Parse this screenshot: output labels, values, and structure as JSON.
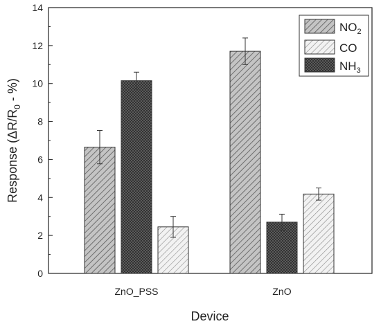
{
  "chart_data": {
    "type": "bar",
    "xlabel": "Device",
    "ylabel": "Response (ΔR/R",
    "ylabel_sub": "0",
    "ylabel_tail": " - %)",
    "ylim": [
      0,
      14
    ],
    "yticks": [
      "0",
      "2",
      "4",
      "6",
      "8",
      "10",
      "12",
      "14"
    ],
    "grid": false,
    "legend_position": "top-right",
    "categories": [
      "ZnO_PSS",
      "ZnO"
    ],
    "series": [
      {
        "name": "NO",
        "name_sub": "2",
        "pattern": "diagonal-hatch",
        "color": "#b5b5b5",
        "values": [
          6.65,
          11.7
        ],
        "errors": [
          0.88,
          0.7
        ]
      },
      {
        "name": "CO",
        "name_sub": "",
        "pattern": "light-diagonal-hatch",
        "color": "#e4e4e4",
        "values": [
          2.45,
          4.18
        ],
        "errors": [
          0.55,
          0.32
        ]
      },
      {
        "name": "NH",
        "name_sub": "3",
        "pattern": "cross-hatch",
        "color": "#5a5a5a",
        "values": [
          10.15,
          2.7
        ],
        "errors": [
          0.45,
          0.42
        ]
      }
    ],
    "bar_order": {
      "ZnO_PSS": [
        "NO",
        "NH",
        "CO"
      ],
      "ZnO": [
        "NO",
        "NH",
        "CO"
      ]
    }
  }
}
